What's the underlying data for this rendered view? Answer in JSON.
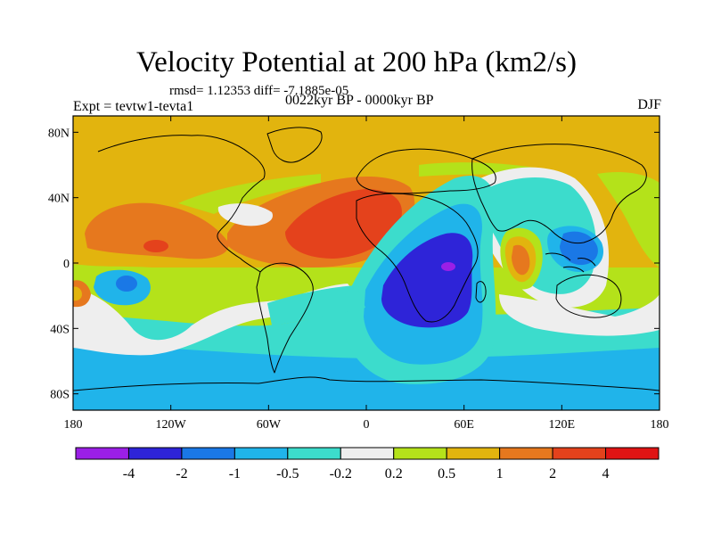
{
  "title": "Velocity Potential at 200 hPa (km2/s)",
  "stats": "rmsd= 1.12353 diff= -7.1885e-05",
  "expt": "Expt = tevtw1-tevta1",
  "period": "0022kyr BP - 0000kyr BP",
  "season": "DJF",
  "map": {
    "x_ticks": [
      {
        "lon": -180,
        "label": "180"
      },
      {
        "lon": -120,
        "label": "120W"
      },
      {
        "lon": -60,
        "label": "60W"
      },
      {
        "lon": 0,
        "label": "0"
      },
      {
        "lon": 60,
        "label": "60E"
      },
      {
        "lon": 120,
        "label": "120E"
      },
      {
        "lon": 180,
        "label": "180"
      }
    ],
    "y_ticks": [
      {
        "lat": 80,
        "label": "80N"
      },
      {
        "lat": 40,
        "label": "40N"
      },
      {
        "lat": 0,
        "label": "0"
      },
      {
        "lat": -40,
        "label": "40S"
      },
      {
        "lat": -80,
        "label": "80S"
      }
    ],
    "lon_range": [
      -180,
      180
    ],
    "lat_range": [
      -90,
      90
    ]
  },
  "colorbar": {
    "colors": [
      "#9b1fe6",
      "#2e24d8",
      "#1a78e6",
      "#20b4ea",
      "#3cdccc",
      "#eeeeee",
      "#b4e21a",
      "#e2b40e",
      "#e6781e",
      "#e4421c",
      "#e01414"
    ],
    "labels": [
      "-4",
      "-2",
      "-1",
      "-0.5",
      "-0.2",
      "0.2",
      "0.5",
      "1",
      "2",
      "4"
    ]
  }
}
